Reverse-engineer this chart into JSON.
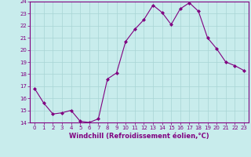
{
  "x": [
    0,
    1,
    2,
    3,
    4,
    5,
    6,
    7,
    8,
    9,
    10,
    11,
    12,
    13,
    14,
    15,
    16,
    17,
    18,
    19,
    20,
    21,
    22,
    23
  ],
  "y": [
    16.8,
    15.6,
    14.7,
    14.8,
    15.0,
    14.1,
    14.0,
    14.3,
    17.6,
    18.1,
    20.7,
    21.7,
    22.5,
    23.7,
    23.1,
    22.1,
    23.4,
    23.9,
    23.2,
    21.0,
    20.1,
    19.0,
    18.7,
    18.3
  ],
  "line_color": "#800080",
  "marker": "D",
  "marker_size": 2,
  "bg_color": "#c8ecec",
  "grid_color": "#a8d4d4",
  "xlabel": "Windchill (Refroidissement éolien,°C)",
  "ylim": [
    14,
    24
  ],
  "xlim_left": -0.5,
  "xlim_right": 23.5,
  "yticks": [
    14,
    15,
    16,
    17,
    18,
    19,
    20,
    21,
    22,
    23,
    24
  ],
  "xticks": [
    0,
    1,
    2,
    3,
    4,
    5,
    6,
    7,
    8,
    9,
    10,
    11,
    12,
    13,
    14,
    15,
    16,
    17,
    18,
    19,
    20,
    21,
    22,
    23
  ],
  "tick_color": "#800080",
  "label_color": "#800080",
  "axis_color": "#800080",
  "tick_fontsize": 5,
  "xlabel_fontsize": 6,
  "linewidth": 0.8
}
